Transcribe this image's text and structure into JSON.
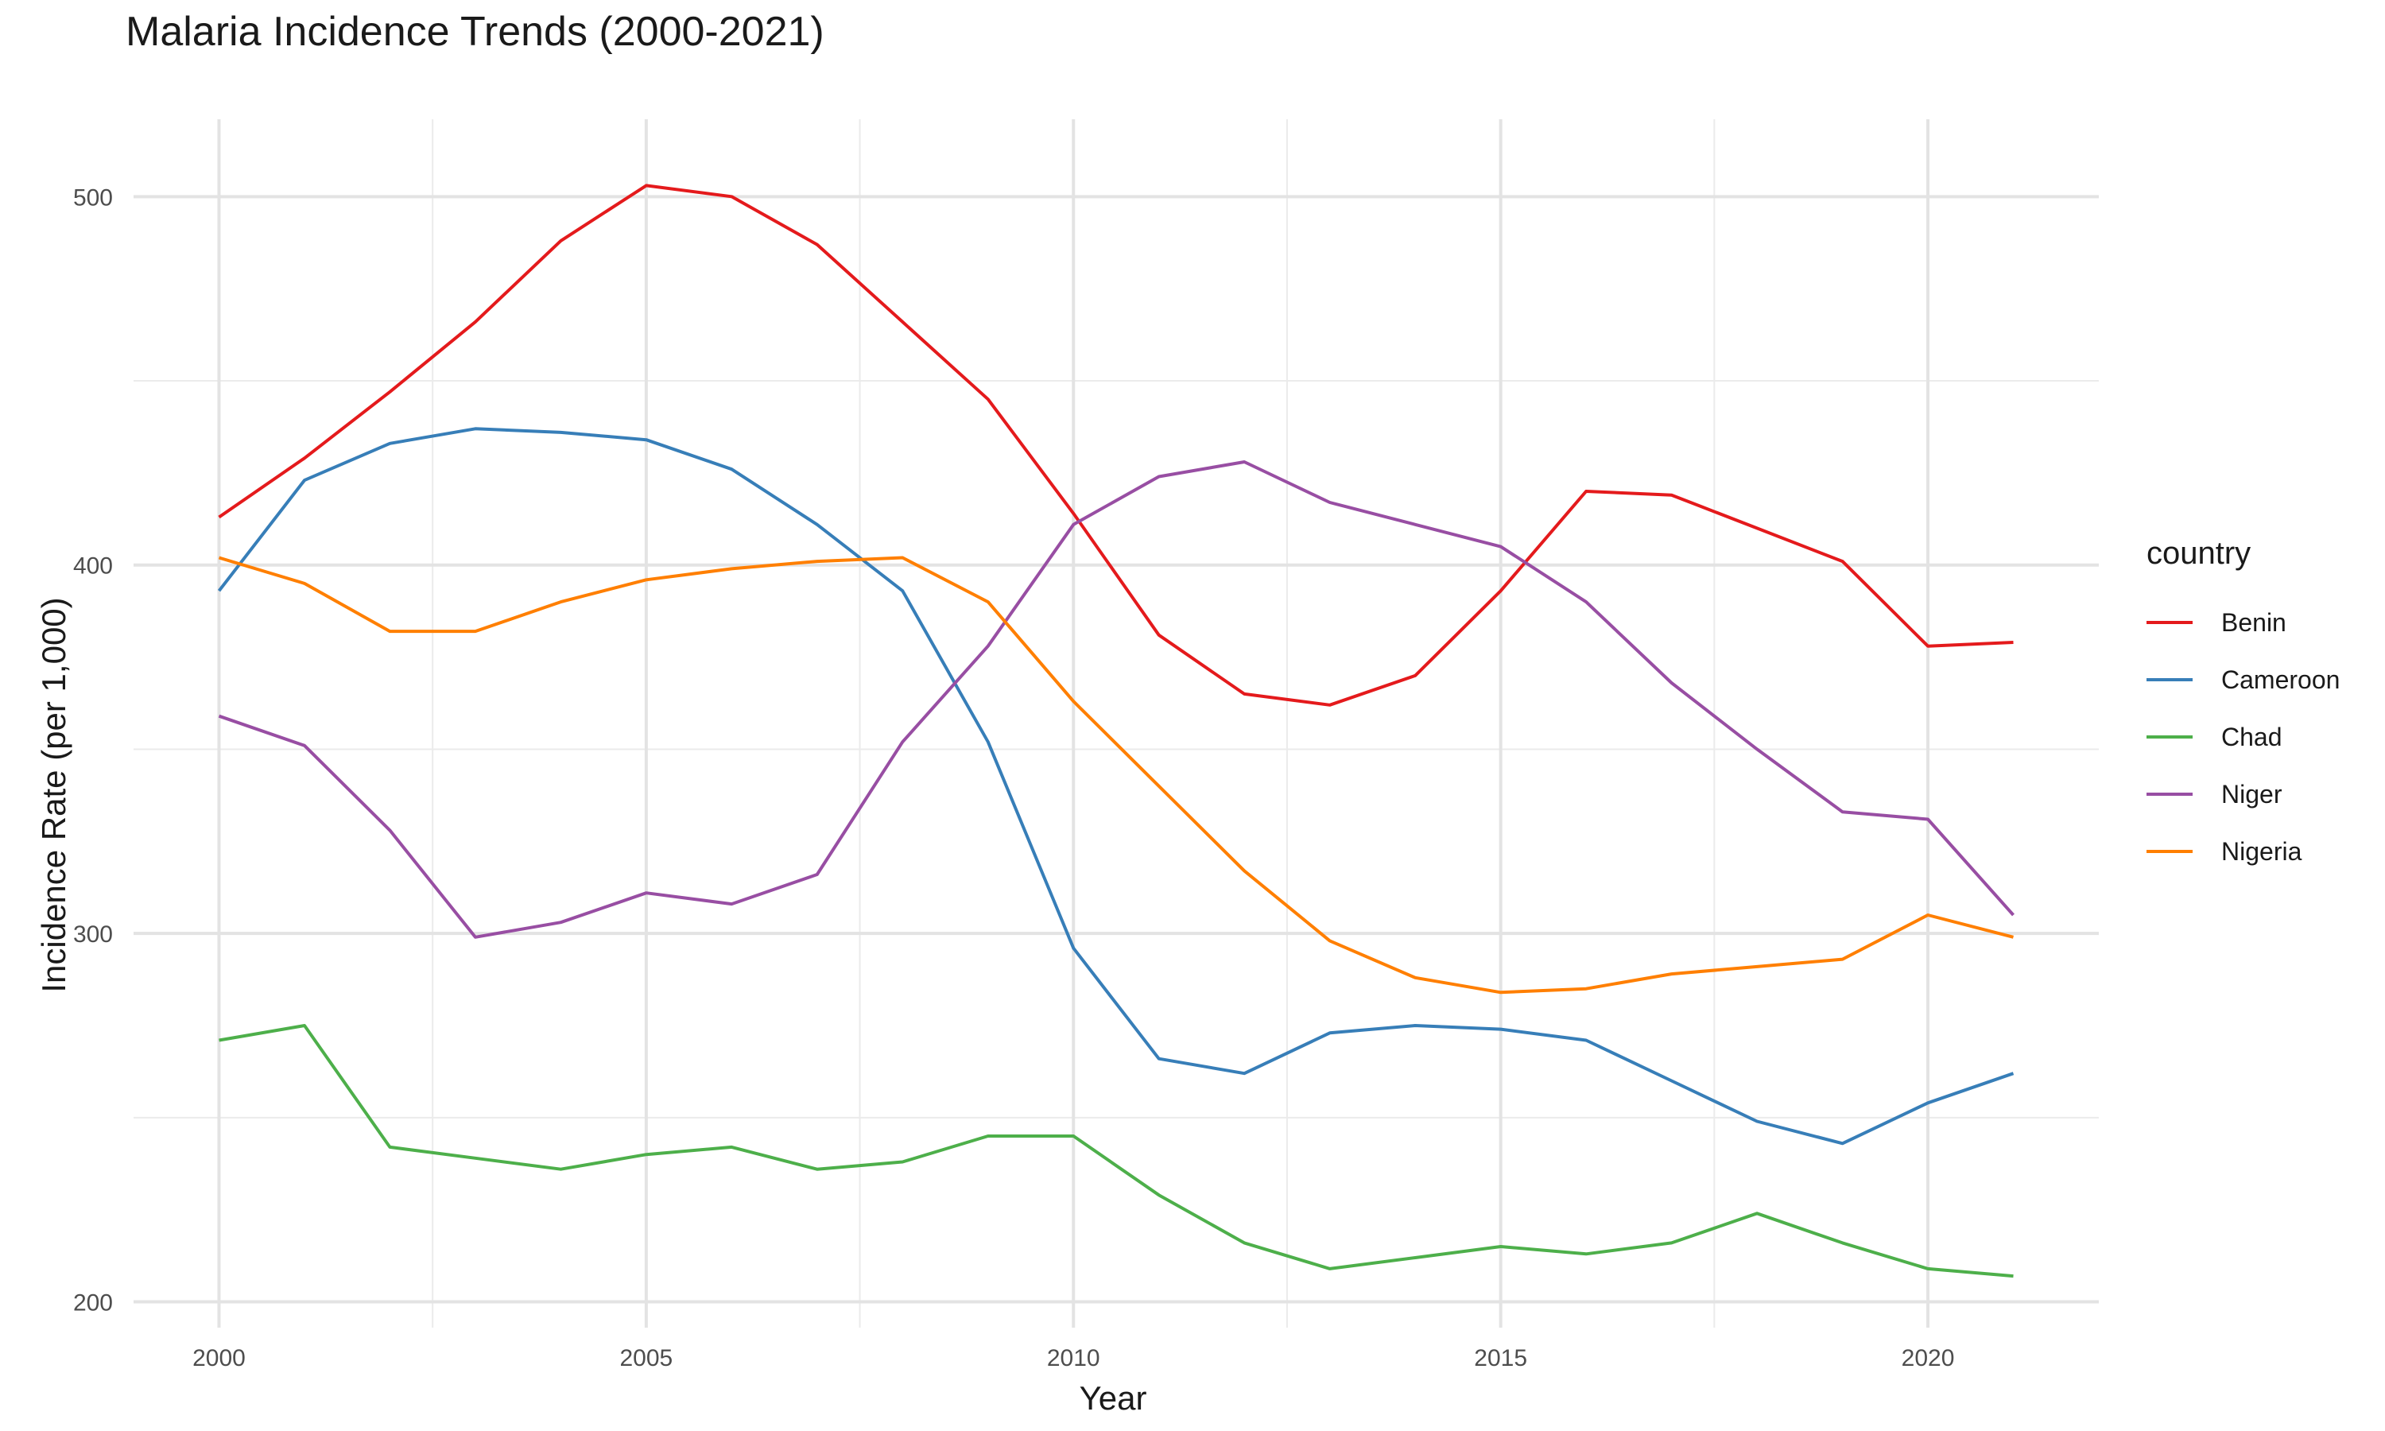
{
  "chart_data": {
    "type": "line",
    "title": "Malaria Incidence Trends (2000-2021)",
    "xlabel": "Year",
    "ylabel": "Incidence Rate (per 1,000)",
    "x": [
      2000,
      2001,
      2002,
      2003,
      2004,
      2005,
      2006,
      2007,
      2008,
      2009,
      2010,
      2011,
      2012,
      2013,
      2014,
      2015,
      2016,
      2017,
      2018,
      2019,
      2020,
      2021
    ],
    "xlim": [
      1999,
      2022
    ],
    "ylim": [
      193,
      521
    ],
    "x_ticks": [
      2000,
      2005,
      2010,
      2015,
      2020
    ],
    "y_ticks": [
      200,
      300,
      400,
      500
    ],
    "grid": true,
    "legend_title": "country",
    "legend_position": "right",
    "series": [
      {
        "name": "Benin",
        "color": "#e41a1c",
        "values": [
          413,
          429,
          447,
          466,
          488,
          503,
          500,
          487,
          466,
          445,
          414,
          381,
          365,
          362,
          370,
          393,
          420,
          419,
          410,
          401,
          378,
          379
        ]
      },
      {
        "name": "Cameroon",
        "color": "#377eb8",
        "values": [
          393,
          423,
          433,
          437,
          436,
          434,
          426,
          411,
          393,
          352,
          296,
          266,
          262,
          273,
          275,
          274,
          271,
          260,
          249,
          243,
          254,
          262
        ]
      },
      {
        "name": "Chad",
        "color": "#4daf4a",
        "values": [
          271,
          275,
          242,
          239,
          236,
          240,
          242,
          236,
          238,
          245,
          245,
          229,
          216,
          209,
          212,
          215,
          213,
          216,
          224,
          216,
          209,
          207
        ]
      },
      {
        "name": "Niger",
        "color": "#984ea3",
        "values": [
          359,
          351,
          328,
          299,
          303,
          311,
          308,
          316,
          352,
          378,
          411,
          424,
          428,
          417,
          411,
          405,
          390,
          368,
          350,
          333,
          331,
          305
        ]
      },
      {
        "name": "Nigeria",
        "color": "#ff7f00",
        "values": [
          402,
          395,
          382,
          382,
          390,
          396,
          399,
          401,
          402,
          390,
          363,
          340,
          317,
          298,
          288,
          284,
          285,
          289,
          291,
          293,
          305,
          299
        ]
      }
    ]
  }
}
